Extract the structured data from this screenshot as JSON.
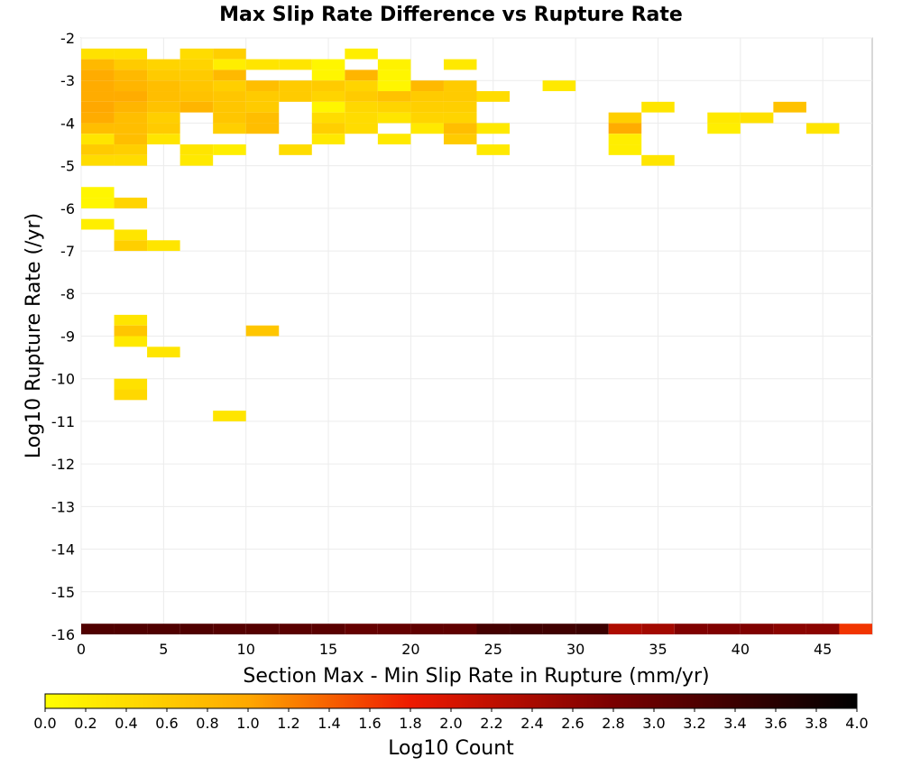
{
  "chart_data": {
    "type": "heatmap",
    "title": "Max Slip Rate Difference vs Rupture Rate",
    "xlabel": "Section Max - Min Slip Rate in Rupture (mm/yr)",
    "ylabel": "Log10 Rupture Rate (/yr)",
    "xlim": [
      0,
      48
    ],
    "ylim": [
      -16,
      -2
    ],
    "x_ticks": [
      "0",
      "5",
      "10",
      "15",
      "20",
      "25",
      "30",
      "35",
      "40",
      "45"
    ],
    "y_ticks": [
      "-2",
      "-3",
      "-4",
      "-5",
      "-6",
      "-7",
      "-8",
      "-9",
      "-10",
      "-11",
      "-12",
      "-13",
      "-14",
      "-15",
      "-16"
    ],
    "bin_width_x": 2,
    "bin_height_y": 0.25,
    "grid": true,
    "colorbar": {
      "label": "Log10 Count",
      "min": 0,
      "max": 4,
      "ticks": [
        "0.0",
        "0.2",
        "0.4",
        "0.6",
        "0.8",
        "1.0",
        "1.2",
        "1.4",
        "1.6",
        "1.8",
        "2.0",
        "2.2",
        "2.4",
        "2.6",
        "2.8",
        "3.0",
        "3.2",
        "3.4",
        "3.6",
        "3.8",
        "4.0"
      ]
    },
    "cells": [
      {
        "x": 0,
        "y": -2.5,
        "v": 0.35
      },
      {
        "x": 2,
        "y": -2.5,
        "v": 0.35
      },
      {
        "x": 6,
        "y": -2.5,
        "v": 0.4
      },
      {
        "x": 8,
        "y": -2.5,
        "v": 0.55
      },
      {
        "x": 16,
        "y": -2.5,
        "v": 0.2
      },
      {
        "x": 0,
        "y": -2.75,
        "v": 0.8
      },
      {
        "x": 2,
        "y": -2.75,
        "v": 0.6
      },
      {
        "x": 4,
        "y": -2.75,
        "v": 0.5
      },
      {
        "x": 6,
        "y": -2.75,
        "v": 0.5
      },
      {
        "x": 8,
        "y": -2.75,
        "v": 0.2
      },
      {
        "x": 10,
        "y": -2.75,
        "v": 0.3
      },
      {
        "x": 12,
        "y": -2.75,
        "v": 0.3
      },
      {
        "x": 14,
        "y": -2.75,
        "v": 0.1
      },
      {
        "x": 18,
        "y": -2.75,
        "v": 0.15
      },
      {
        "x": 22,
        "y": -2.75,
        "v": 0.25
      },
      {
        "x": 0,
        "y": -3,
        "v": 0.95
      },
      {
        "x": 2,
        "y": -3,
        "v": 0.8
      },
      {
        "x": 4,
        "y": -3,
        "v": 0.6
      },
      {
        "x": 6,
        "y": -3,
        "v": 0.6
      },
      {
        "x": 8,
        "y": -3,
        "v": 0.8
      },
      {
        "x": 14,
        "y": -3,
        "v": 0.1
      },
      {
        "x": 16,
        "y": -3,
        "v": 0.85
      },
      {
        "x": 18,
        "y": -3,
        "v": 0.1
      },
      {
        "x": 0,
        "y": -3.25,
        "v": 0.95
      },
      {
        "x": 2,
        "y": -3.25,
        "v": 0.85
      },
      {
        "x": 4,
        "y": -3.25,
        "v": 0.75
      },
      {
        "x": 6,
        "y": -3.25,
        "v": 0.65
      },
      {
        "x": 8,
        "y": -3.25,
        "v": 0.55
      },
      {
        "x": 10,
        "y": -3.25,
        "v": 0.75
      },
      {
        "x": 12,
        "y": -3.25,
        "v": 0.6
      },
      {
        "x": 14,
        "y": -3.25,
        "v": 0.6
      },
      {
        "x": 16,
        "y": -3.25,
        "v": 0.5
      },
      {
        "x": 18,
        "y": -3.25,
        "v": 0.1
      },
      {
        "x": 20,
        "y": -3.25,
        "v": 0.8
      },
      {
        "x": 22,
        "y": -3.25,
        "v": 0.6
      },
      {
        "x": 28,
        "y": -3.25,
        "v": 0.25
      },
      {
        "x": 0,
        "y": -3.5,
        "v": 0.95
      },
      {
        "x": 2,
        "y": -3.5,
        "v": 0.95
      },
      {
        "x": 4,
        "y": -3.5,
        "v": 0.75
      },
      {
        "x": 6,
        "y": -3.5,
        "v": 0.7
      },
      {
        "x": 8,
        "y": -3.5,
        "v": 0.65
      },
      {
        "x": 10,
        "y": -3.5,
        "v": 0.6
      },
      {
        "x": 12,
        "y": -3.5,
        "v": 0.6
      },
      {
        "x": 14,
        "y": -3.5,
        "v": 0.5
      },
      {
        "x": 16,
        "y": -3.5,
        "v": 0.6
      },
      {
        "x": 18,
        "y": -3.5,
        "v": 0.7
      },
      {
        "x": 20,
        "y": -3.5,
        "v": 0.6
      },
      {
        "x": 22,
        "y": -3.5,
        "v": 0.6
      },
      {
        "x": 24,
        "y": -3.5,
        "v": 0.4
      },
      {
        "x": 0,
        "y": -3.75,
        "v": 1.0
      },
      {
        "x": 2,
        "y": -3.75,
        "v": 0.85
      },
      {
        "x": 4,
        "y": -3.75,
        "v": 0.7
      },
      {
        "x": 6,
        "y": -3.75,
        "v": 0.85
      },
      {
        "x": 8,
        "y": -3.75,
        "v": 0.65
      },
      {
        "x": 10,
        "y": -3.75,
        "v": 0.6
      },
      {
        "x": 14,
        "y": -3.75,
        "v": 0.1
      },
      {
        "x": 16,
        "y": -3.75,
        "v": 0.45
      },
      {
        "x": 18,
        "y": -3.75,
        "v": 0.5
      },
      {
        "x": 20,
        "y": -3.75,
        "v": 0.55
      },
      {
        "x": 22,
        "y": -3.75,
        "v": 0.55
      },
      {
        "x": 34,
        "y": -3.75,
        "v": 0.3
      },
      {
        "x": 42,
        "y": -3.75,
        "v": 0.7
      },
      {
        "x": 0,
        "y": -4,
        "v": 0.95
      },
      {
        "x": 2,
        "y": -4,
        "v": 0.75
      },
      {
        "x": 4,
        "y": -4,
        "v": 0.55
      },
      {
        "x": 8,
        "y": -4,
        "v": 0.65
      },
      {
        "x": 10,
        "y": -4,
        "v": 0.75
      },
      {
        "x": 14,
        "y": -4,
        "v": 0.4
      },
      {
        "x": 16,
        "y": -4,
        "v": 0.4
      },
      {
        "x": 18,
        "y": -4,
        "v": 0.3
      },
      {
        "x": 20,
        "y": -4,
        "v": 0.5
      },
      {
        "x": 22,
        "y": -4,
        "v": 0.5
      },
      {
        "x": 32,
        "y": -4,
        "v": 0.55
      },
      {
        "x": 38,
        "y": -4,
        "v": 0.25
      },
      {
        "x": 40,
        "y": -4,
        "v": 0.35
      },
      {
        "x": 0,
        "y": -4.25,
        "v": 0.75
      },
      {
        "x": 2,
        "y": -4.25,
        "v": 0.75
      },
      {
        "x": 4,
        "y": -4.25,
        "v": 0.6
      },
      {
        "x": 8,
        "y": -4.25,
        "v": 0.55
      },
      {
        "x": 10,
        "y": -4.25,
        "v": 0.75
      },
      {
        "x": 14,
        "y": -4.25,
        "v": 0.55
      },
      {
        "x": 16,
        "y": -4.25,
        "v": 0.4
      },
      {
        "x": 20,
        "y": -4.25,
        "v": 0.25
      },
      {
        "x": 22,
        "y": -4.25,
        "v": 0.75
      },
      {
        "x": 24,
        "y": -4.25,
        "v": 0.25
      },
      {
        "x": 32,
        "y": -4.25,
        "v": 0.95
      },
      {
        "x": 38,
        "y": -4.25,
        "v": 0.2
      },
      {
        "x": 44,
        "y": -4.25,
        "v": 0.3
      },
      {
        "x": 0,
        "y": -4.5,
        "v": 0.3
      },
      {
        "x": 2,
        "y": -4.5,
        "v": 0.75
      },
      {
        "x": 4,
        "y": -4.5,
        "v": 0.3
      },
      {
        "x": 14,
        "y": -4.5,
        "v": 0.25
      },
      {
        "x": 18,
        "y": -4.5,
        "v": 0.25
      },
      {
        "x": 22,
        "y": -4.5,
        "v": 0.6
      },
      {
        "x": 32,
        "y": -4.5,
        "v": 0.2
      },
      {
        "x": 0,
        "y": -4.75,
        "v": 0.6
      },
      {
        "x": 2,
        "y": -4.75,
        "v": 0.55
      },
      {
        "x": 6,
        "y": -4.75,
        "v": 0.3
      },
      {
        "x": 8,
        "y": -4.75,
        "v": 0.2
      },
      {
        "x": 12,
        "y": -4.75,
        "v": 0.4
      },
      {
        "x": 24,
        "y": -4.75,
        "v": 0.25
      },
      {
        "x": 32,
        "y": -4.75,
        "v": 0.2
      },
      {
        "x": 0,
        "y": -5,
        "v": 0.4
      },
      {
        "x": 2,
        "y": -5,
        "v": 0.4
      },
      {
        "x": 6,
        "y": -5,
        "v": 0.25
      },
      {
        "x": 34,
        "y": -5,
        "v": 0.3
      },
      {
        "x": 0,
        "y": -5.75,
        "v": 0.1
      },
      {
        "x": 0,
        "y": -6,
        "v": 0.1
      },
      {
        "x": 2,
        "y": -6,
        "v": 0.5
      },
      {
        "x": 0,
        "y": -6.5,
        "v": 0.2
      },
      {
        "x": 2,
        "y": -6.75,
        "v": 0.3
      },
      {
        "x": 2,
        "y": -7,
        "v": 0.55
      },
      {
        "x": 4,
        "y": -7,
        "v": 0.3
      },
      {
        "x": 2,
        "y": -8.75,
        "v": 0.3
      },
      {
        "x": 2,
        "y": -9,
        "v": 0.65
      },
      {
        "x": 10,
        "y": -9,
        "v": 0.65
      },
      {
        "x": 2,
        "y": -9.25,
        "v": 0.25
      },
      {
        "x": 4,
        "y": -9.5,
        "v": 0.3
      },
      {
        "x": 2,
        "y": -10.25,
        "v": 0.35
      },
      {
        "x": 2,
        "y": -10.5,
        "v": 0.45
      },
      {
        "x": 8,
        "y": -11,
        "v": 0.3
      },
      {
        "x": 0,
        "y": -16,
        "v": 3.2
      },
      {
        "x": 2,
        "y": -16,
        "v": 3.2
      },
      {
        "x": 4,
        "y": -16,
        "v": 3.2
      },
      {
        "x": 6,
        "y": -16,
        "v": 3.2
      },
      {
        "x": 8,
        "y": -16,
        "v": 3.15
      },
      {
        "x": 10,
        "y": -16,
        "v": 3.15
      },
      {
        "x": 12,
        "y": -16,
        "v": 3.1
      },
      {
        "x": 14,
        "y": -16,
        "v": 3.1
      },
      {
        "x": 16,
        "y": -16,
        "v": 3.0
      },
      {
        "x": 18,
        "y": -16,
        "v": 3.0
      },
      {
        "x": 20,
        "y": -16,
        "v": 3.05
      },
      {
        "x": 22,
        "y": -16,
        "v": 3.05
      },
      {
        "x": 24,
        "y": -16,
        "v": 3.3
      },
      {
        "x": 26,
        "y": -16,
        "v": 3.35
      },
      {
        "x": 28,
        "y": -16,
        "v": 3.35
      },
      {
        "x": 30,
        "y": -16,
        "v": 3.4
      },
      {
        "x": 32,
        "y": -16,
        "v": 2.35
      },
      {
        "x": 34,
        "y": -16,
        "v": 2.45
      },
      {
        "x": 36,
        "y": -16,
        "v": 2.75
      },
      {
        "x": 38,
        "y": -16,
        "v": 2.75
      },
      {
        "x": 40,
        "y": -16,
        "v": 2.75
      },
      {
        "x": 42,
        "y": -16,
        "v": 2.65
      },
      {
        "x": 44,
        "y": -16,
        "v": 2.65
      },
      {
        "x": 46,
        "y": -16,
        "v": 1.65
      }
    ]
  }
}
